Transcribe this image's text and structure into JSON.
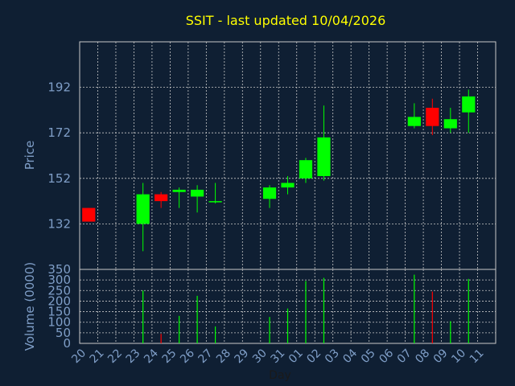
{
  "title": "SSIT - last updated 10/04/2026",
  "colors": {
    "background": "#0f1f33",
    "up": "#00ff00",
    "down": "#ff0000",
    "title": "#ffff00",
    "axis_text": "#7f9ec7",
    "grid": "#c8c8c8"
  },
  "chart_data": [
    {
      "type": "candlestick",
      "ylabel": "Price",
      "ylim": [
        112,
        212
      ],
      "yticks": [
        132,
        152,
        172,
        192
      ],
      "grid": true,
      "days": [
        "20",
        "21",
        "22",
        "23",
        "24",
        "25",
        "26",
        "27",
        "28",
        "29",
        "30",
        "31",
        "01",
        "02",
        "03",
        "04",
        "05",
        "06",
        "07",
        "08",
        "09",
        "10",
        "11"
      ],
      "candles": [
        {
          "day": "20",
          "open": 139,
          "high": 139,
          "low": 133,
          "close": 133
        },
        {
          "day": "23",
          "open": 132,
          "high": 150,
          "low": 120,
          "close": 145
        },
        {
          "day": "24",
          "open": 145,
          "high": 146,
          "low": 139,
          "close": 142
        },
        {
          "day": "25",
          "open": 146,
          "high": 148,
          "low": 139,
          "close": 147
        },
        {
          "day": "26",
          "open": 144,
          "high": 149,
          "low": 137,
          "close": 147
        },
        {
          "day": "27",
          "open": 142,
          "high": 150,
          "low": 141,
          "close": 142
        },
        {
          "day": "30",
          "open": 143,
          "high": 149,
          "low": 139,
          "close": 148
        },
        {
          "day": "31",
          "open": 148,
          "high": 153,
          "low": 145,
          "close": 150
        },
        {
          "day": "01",
          "open": 152,
          "high": 161,
          "low": 150,
          "close": 160
        },
        {
          "day": "02",
          "open": 153,
          "high": 184,
          "low": 151,
          "close": 170
        },
        {
          "day": "07",
          "open": 175,
          "high": 185,
          "low": 174,
          "close": 179
        },
        {
          "day": "08",
          "open": 183,
          "high": 187,
          "low": 171,
          "close": 175
        },
        {
          "day": "09",
          "open": 174,
          "high": 183,
          "low": 172,
          "close": 178
        },
        {
          "day": "10",
          "open": 181,
          "high": 191,
          "low": 172,
          "close": 188
        }
      ]
    },
    {
      "type": "bar",
      "ylabel": "Volume (0000)",
      "xlabel": "Day",
      "ylim": [
        0,
        350
      ],
      "yticks": [
        "0",
        "50",
        "100",
        "150",
        "200",
        "250",
        "300",
        "350"
      ],
      "grid": true,
      "days": [
        "20",
        "21",
        "22",
        "23",
        "24",
        "25",
        "26",
        "27",
        "28",
        "29",
        "30",
        "31",
        "01",
        "02",
        "03",
        "04",
        "05",
        "06",
        "07",
        "08",
        "09",
        "10",
        "11"
      ],
      "bars": [
        {
          "day": "23",
          "value": 250,
          "direction": "up"
        },
        {
          "day": "24",
          "value": 45,
          "direction": "down"
        },
        {
          "day": "25",
          "value": 130,
          "direction": "up"
        },
        {
          "day": "26",
          "value": 225,
          "direction": "up"
        },
        {
          "day": "27",
          "value": 80,
          "direction": "up"
        },
        {
          "day": "30",
          "value": 125,
          "direction": "up"
        },
        {
          "day": "31",
          "value": 165,
          "direction": "up"
        },
        {
          "day": "01",
          "value": 295,
          "direction": "up"
        },
        {
          "day": "02",
          "value": 310,
          "direction": "up"
        },
        {
          "day": "07",
          "value": 325,
          "direction": "up"
        },
        {
          "day": "08",
          "value": 245,
          "direction": "down"
        },
        {
          "day": "09",
          "value": 105,
          "direction": "up"
        },
        {
          "day": "10",
          "value": 305,
          "direction": "up"
        }
      ]
    }
  ]
}
